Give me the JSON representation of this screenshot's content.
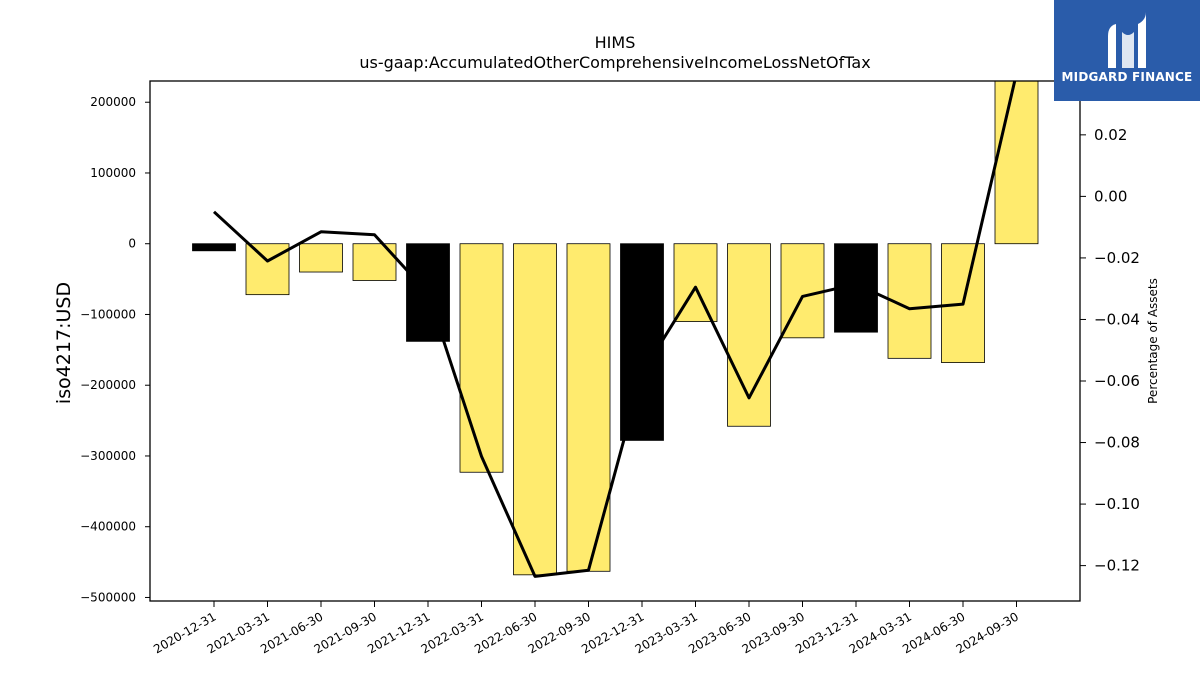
{
  "chart_data": {
    "type": "bar",
    "title": "HIMS",
    "subtitle": "us-gaap:AccumulatedOtherComprehensiveIncomeLossNetOfTax",
    "ylabel": "iso4217:USD",
    "ylabel_right": "Percentage of Assets",
    "categories": [
      "2020-12-31",
      "2021-03-31",
      "2021-06-30",
      "2021-09-30",
      "2021-12-31",
      "2022-03-31",
      "2022-06-30",
      "2022-09-30",
      "2022-12-31",
      "2023-03-31",
      "2023-06-30",
      "2023-09-30",
      "2023-12-31",
      "2024-03-31",
      "2024-06-30",
      "2024-09-30"
    ],
    "values": [
      -10000,
      -72000,
      -40000,
      -52000,
      -138000,
      -323000,
      -468000,
      -463000,
      -278000,
      -110000,
      -258000,
      -133000,
      -125000,
      -162000,
      -168000,
      230000
    ],
    "bar_colors": [
      "#000000",
      "#ffeb6e",
      "#ffeb6e",
      "#ffeb6e",
      "#000000",
      "#ffeb6e",
      "#ffeb6e",
      "#ffeb6e",
      "#000000",
      "#ffeb6e",
      "#ffeb6e",
      "#ffeb6e",
      "#000000",
      "#ffeb6e",
      "#ffeb6e",
      "#ffeb6e"
    ],
    "line_values": [
      -0.005,
      -0.021,
      -0.0115,
      -0.0125,
      -0.0315,
      -0.0845,
      -0.1235,
      -0.1215,
      -0.0575,
      -0.0295,
      -0.0655,
      -0.0325,
      -0.0285,
      -0.0365,
      -0.035,
      0.04
    ],
    "ylim": [
      -505000,
      230000
    ],
    "ylim_right": [
      -0.1315,
      0.0375
    ],
    "yticks": [
      200000,
      100000,
      0,
      -100000,
      -200000,
      -300000,
      -400000,
      -500000
    ],
    "yticks_right": [
      0.02,
      0.0,
      -0.02,
      -0.04,
      -0.06,
      -0.08,
      -0.1,
      -0.12
    ],
    "ytick_labels_right": [
      "0.02",
      "0.00",
      "−0.02",
      "−0.04",
      "−0.06",
      "−0.08",
      "−0.10",
      "−0.12"
    ],
    "grid": false
  },
  "logo": {
    "text": "MIDGARD FINANCE",
    "color": "#2a5caa"
  }
}
